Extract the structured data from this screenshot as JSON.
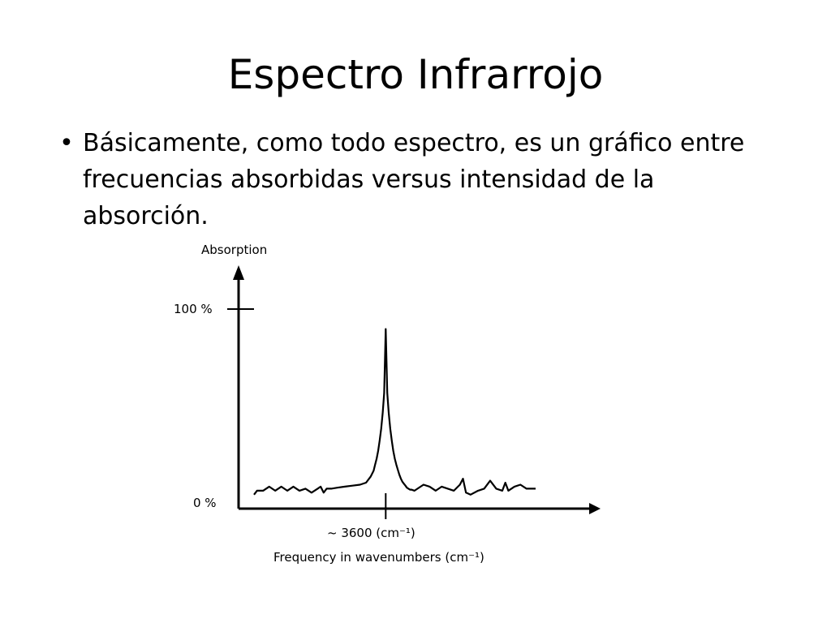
{
  "slide": {
    "title": "Espectro Infrarrojo",
    "bullets": [
      {
        "marker": "•",
        "text": "Básicamente, como todo espectro, es un gráfico entre frecuencias absorbidas versus intensidad de la absorción."
      }
    ]
  },
  "chart_data": {
    "type": "line",
    "title": "",
    "ylabel": "Absorption",
    "xlabel": "Frequency in wavenumbers (cm⁻¹)",
    "yticks": [
      "100 %",
      "0 %"
    ],
    "xticks": [
      "~ 3600 (cm⁻¹)"
    ],
    "ylim": [
      0,
      100
    ],
    "grid": false,
    "legend": "none",
    "series": [
      {
        "color": "#000000",
        "x": [
          0,
          2,
          6,
          10,
          12,
          14,
          18,
          22,
          26,
          30,
          34,
          38,
          42,
          44,
          46,
          48,
          51,
          55,
          60,
          65,
          70,
          74,
          77,
          79,
          80,
          81,
          82,
          83,
          84,
          85,
          86,
          87,
          88,
          89,
          90,
          91,
          92,
          93,
          94,
          95,
          96,
          97,
          98,
          99,
          100,
          101,
          102,
          103,
          104,
          106,
          108,
          112,
          116,
          120,
          124,
          128,
          132,
          136,
          138,
          140,
          143,
          148,
          152,
          156,
          160,
          164,
          166,
          168,
          172,
          176,
          180,
          184,
          186
        ],
        "values": [
          7,
          9,
          9,
          11,
          10,
          9,
          11,
          9,
          11,
          9,
          10,
          8,
          10,
          11,
          8,
          10,
          10,
          10.5,
          11,
          11.5,
          12,
          13,
          16,
          19,
          22,
          25,
          29,
          34,
          40,
          48,
          58,
          90,
          58,
          48,
          40,
          34,
          29,
          25,
          22,
          19.5,
          17,
          15,
          13.5,
          12.5,
          11.5,
          10.5,
          10,
          9.5,
          9.5,
          9,
          10,
          12,
          11,
          9,
          11,
          10,
          9,
          12,
          15,
          8,
          7,
          9,
          10,
          14,
          10,
          9,
          13,
          9,
          11,
          12,
          10,
          10,
          10
        ]
      }
    ],
    "annotation": "~ 3600 (cm⁻¹) marks the peak position"
  },
  "colors": {
    "background": "#ffffff",
    "text": "#000000",
    "line": "#000000"
  }
}
